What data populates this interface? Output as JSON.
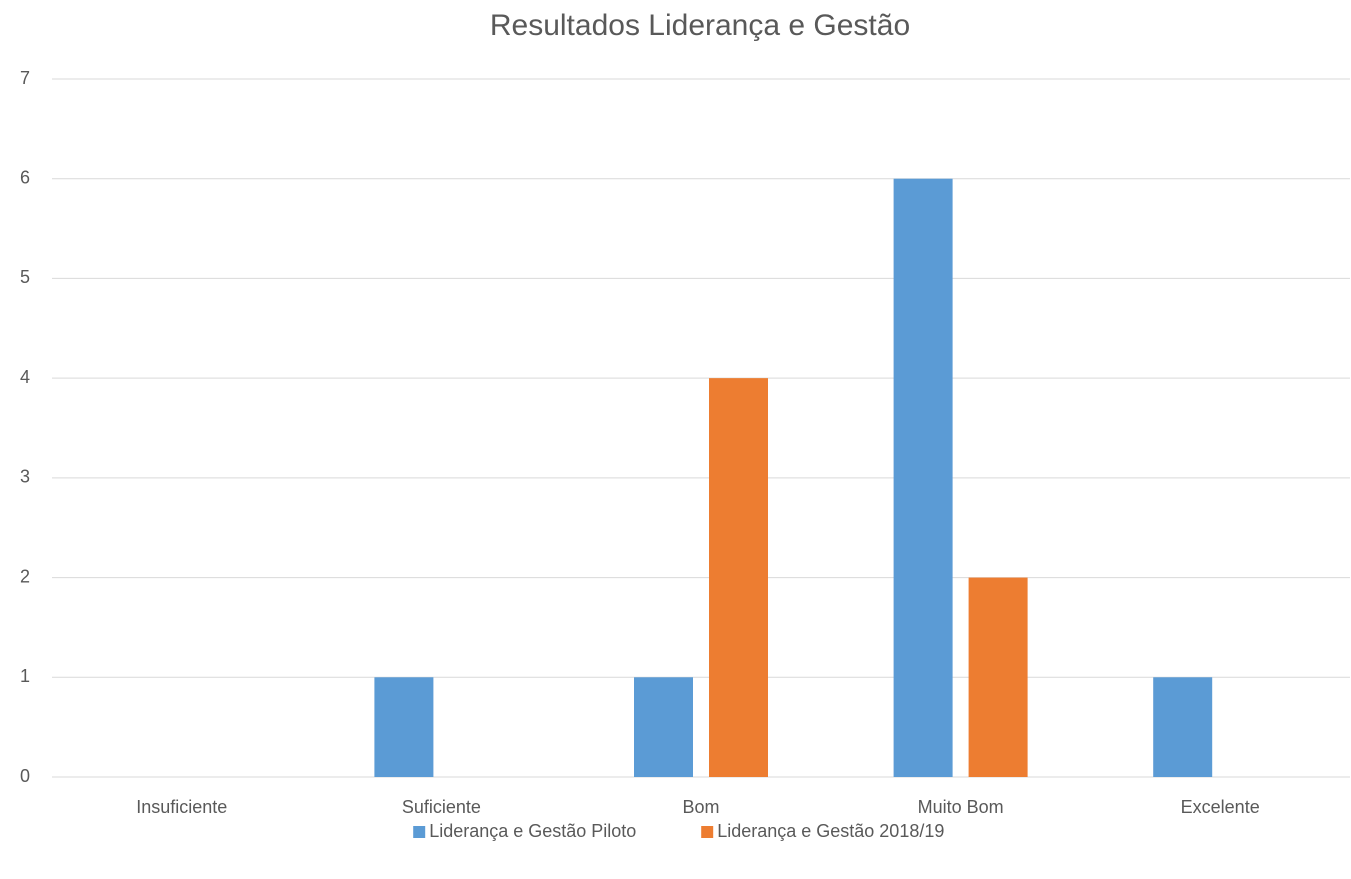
{
  "chart_data": {
    "type": "bar",
    "title": "Resultados Liderança e Gestão",
    "categories": [
      "Insuficiente",
      "Suficiente",
      "Bom",
      "Muito Bom",
      "Excelente"
    ],
    "series": [
      {
        "name": "Liderança e Gestão Piloto",
        "color": "#5b9bd5",
        "values": [
          0,
          1,
          1,
          6,
          1
        ]
      },
      {
        "name": "Liderança e Gestão 2018/19",
        "color": "#ed7d31",
        "values": [
          0,
          0,
          4,
          2,
          0
        ]
      }
    ],
    "ylim": [
      0,
      7
    ],
    "yticks": [
      0,
      1,
      2,
      3,
      4,
      5,
      6,
      7
    ],
    "grid": true,
    "legend": "bottom"
  }
}
